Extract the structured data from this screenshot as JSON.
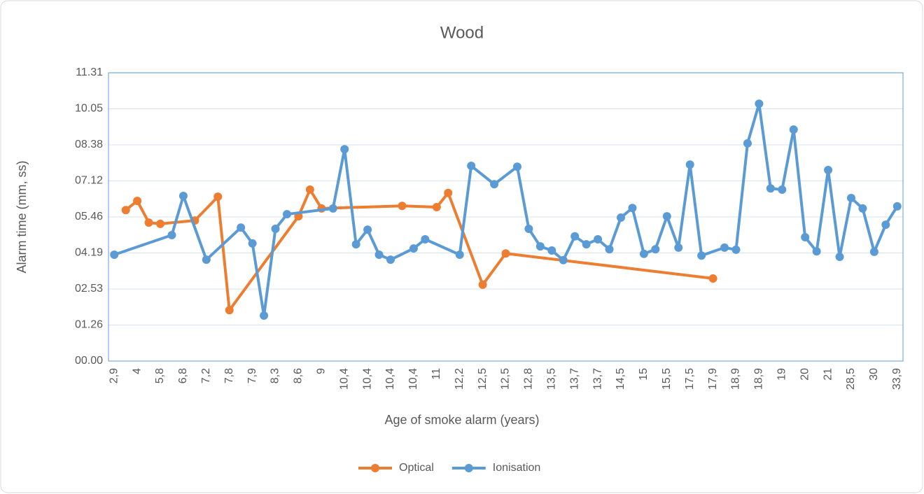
{
  "chart_data": {
    "type": "line",
    "title": "Wood",
    "x_label": "Age of smoke alarm (years)",
    "y_label": "Alarm time (mm, ss)",
    "categories": [
      "2,9",
      null,
      "4",
      null,
      "5,8",
      null,
      "6,8",
      null,
      "7,2",
      null,
      "7,8",
      null,
      "7,9",
      null,
      "8,3",
      null,
      "8,6",
      null,
      "9",
      null,
      "10,4",
      null,
      "10,4",
      null,
      "10,4",
      null,
      "10,4",
      null,
      "11",
      null,
      "12,2",
      null,
      "12,5",
      null,
      "12,5",
      null,
      "12,8",
      null,
      "13,5",
      null,
      "13,7",
      null,
      "13,7",
      null,
      "14,5",
      null,
      "15",
      null,
      "15,5",
      null,
      "17,5",
      null,
      "17,9",
      null,
      "18,9",
      null,
      "18,9",
      null,
      "19",
      null,
      "20",
      null,
      "21",
      null,
      "28,5",
      null,
      "30",
      null,
      "33,9"
    ],
    "series": [
      {
        "name": "Optical",
        "color": "#ed7d31",
        "values": [
          null,
          362,
          384,
          332,
          329,
          null,
          null,
          337,
          null,
          394,
          122,
          null,
          null,
          null,
          null,
          null,
          347,
          411,
          366,
          null,
          null,
          null,
          null,
          null,
          null,
          372,
          null,
          null,
          369,
          403,
          null,
          null,
          183,
          null,
          258,
          null,
          null,
          null,
          null,
          null,
          null,
          null,
          null,
          null,
          null,
          null,
          null,
          null,
          null,
          null,
          null,
          null,
          198,
          null,
          null,
          null,
          null,
          null,
          null,
          null,
          null,
          null,
          null,
          null,
          null,
          null,
          null,
          null,
          null
        ]
      },
      {
        "name": "Ionisation",
        "color": "#5b9bd5",
        "values": [
          255,
          null,
          null,
          null,
          null,
          302,
          396,
          null,
          243,
          null,
          null,
          320,
          282,
          109,
          317,
          352,
          null,
          null,
          null,
          366,
          508,
          280,
          315,
          255,
          243,
          null,
          270,
          292,
          null,
          null,
          255,
          468,
          null,
          424,
          null,
          466,
          317,
          275,
          265,
          242,
          299,
          280,
          292,
          268,
          344,
          367,
          257,
          268,
          347,
          272,
          471,
          253,
          null,
          272,
          267,
          522,
          617,
          414,
          411,
          555,
          297,
          263,
          458,
          250,
          391,
          366,
          262,
          327,
          371
        ]
      }
    ],
    "connect_gaps": true,
    "ylim": [
      0,
      691.2
    ],
    "yticks": [
      {
        "value": 0,
        "label": "00.00"
      },
      {
        "value": 86.4,
        "label": "01.26"
      },
      {
        "value": 172.8,
        "label": "02.53"
      },
      {
        "value": 259.2,
        "label": "04.19"
      },
      {
        "value": 345.6,
        "label": "05.46"
      },
      {
        "value": 432,
        "label": "07.12"
      },
      {
        "value": 518.4,
        "label": "08.38"
      },
      {
        "value": 604.8,
        "label": "10.05"
      },
      {
        "value": 691.2,
        "label": "11.31"
      }
    ],
    "grid": true,
    "legend": "bottom"
  }
}
